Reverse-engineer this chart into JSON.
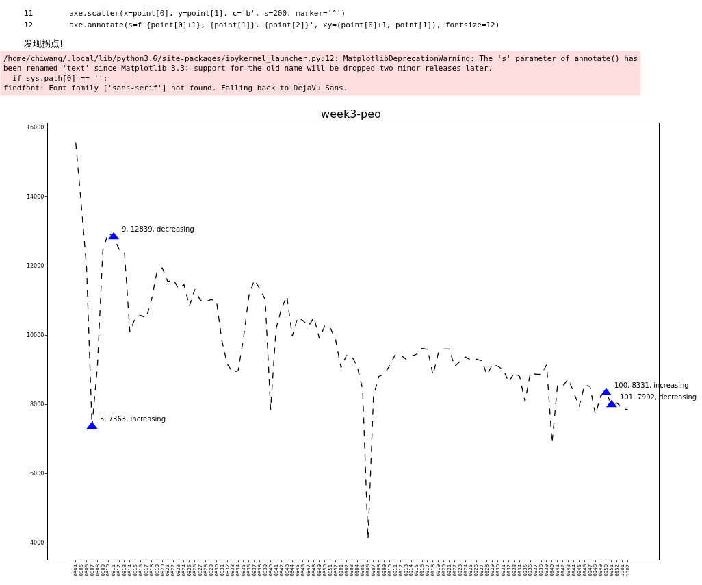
{
  "chart_data": {
    "type": "line",
    "title": "week3-peo",
    "categories": [
      "0804",
      "0805",
      "0806",
      "0807",
      "0808",
      "0809",
      "0810",
      "0811",
      "0812",
      "0813",
      "0814",
      "0815",
      "0816",
      "0817",
      "0818",
      "0819",
      "0820",
      "0821",
      "0822",
      "0823",
      "0824",
      "0825",
      "0826",
      "0827",
      "0828",
      "0829",
      "0830",
      "0831",
      "0832",
      "0833",
      "0834",
      "0835",
      "0836",
      "0837",
      "0838",
      "0839",
      "0840",
      "0841",
      "0842",
      "0843",
      "0844",
      "0845",
      "0846",
      "0847",
      "0848",
      "0849",
      "0850",
      "0851",
      "0852",
      "0901",
      "0902",
      "0903",
      "0904",
      "0905",
      "0906",
      "0907",
      "0908",
      "0909",
      "0910",
      "0911",
      "0912",
      "0913",
      "0914",
      "0915",
      "0916",
      "0917",
      "0918",
      "0919",
      "0920",
      "0921",
      "0922",
      "0923",
      "0924",
      "0925",
      "0926",
      "0927",
      "0928",
      "0929",
      "0930",
      "0931",
      "0932",
      "0933",
      "0934",
      "0935",
      "0936",
      "0937",
      "0938",
      "0939",
      "0940",
      "0941",
      "0942",
      "0943",
      "0944",
      "0945",
      "0946",
      "0947",
      "0948",
      "0949",
      "0950",
      "0951",
      "0952",
      "1001",
      "1002"
    ],
    "series": [
      {
        "color": "#000000",
        "line_style": "dashed",
        "marker": "none",
        "values": [
          15550,
          13800,
          11950,
          7363,
          9100,
          12450,
          12950,
          12839,
          12480,
          12390,
          10090,
          10510,
          10570,
          10490,
          11030,
          11830,
          11940,
          11540,
          11610,
          11340,
          11460,
          10840,
          11320,
          11010,
          10960,
          11030,
          10980,
          9840,
          9160,
          8930,
          8970,
          9930,
          11150,
          11590,
          11340,
          11030,
          7850,
          10180,
          10760,
          11130,
          9970,
          10510,
          10420,
          10260,
          10510,
          9910,
          10260,
          10220,
          9870,
          9060,
          9410,
          9390,
          9100,
          8440,
          4100,
          8230,
          8810,
          8870,
          9120,
          9430,
          9430,
          9310,
          9390,
          9450,
          9620,
          9590,
          8850,
          9490,
          9600,
          9600,
          9100,
          9240,
          9370,
          9280,
          9310,
          9260,
          8850,
          9160,
          9100,
          9000,
          8640,
          8910,
          8810,
          8080,
          8910,
          8870,
          8870,
          9140,
          6880,
          8540,
          8540,
          8730,
          8350,
          7940,
          8560,
          8520,
          7710,
          8250,
          8331,
          7992,
          8040,
          7880,
          7850
        ]
      },
      {
        "type": "scatter",
        "color": "#0000ff",
        "marker": "triangle",
        "values": [
          null,
          null,
          null,
          7363,
          null,
          null,
          null,
          12839,
          null,
          null,
          null,
          null,
          null,
          null,
          null,
          null,
          null,
          null,
          null,
          null,
          null,
          null,
          null,
          null,
          null,
          null,
          null,
          null,
          null,
          null,
          null,
          null,
          null,
          null,
          null,
          null,
          null,
          null,
          null,
          null,
          null,
          null,
          null,
          null,
          null,
          null,
          null,
          null,
          null,
          null,
          null,
          null,
          null,
          null,
          null,
          null,
          null,
          null,
          null,
          null,
          null,
          null,
          null,
          null,
          null,
          null,
          null,
          null,
          null,
          null,
          null,
          null,
          null,
          null,
          null,
          null,
          null,
          null,
          null,
          null,
          null,
          null,
          null,
          null,
          null,
          null,
          null,
          null,
          null,
          null,
          null,
          null,
          null,
          null,
          null,
          null,
          null,
          null,
          8331,
          7992,
          null,
          null,
          null
        ]
      }
    ],
    "ylim": [
      3517,
      16116
    ],
    "yticks": [
      4000,
      6000,
      8000,
      10000,
      12000,
      14000,
      16000
    ],
    "annotations": [
      "11        axe.scatter(x=point[0], y=point[1], c='b', s=200, marker='^')",
      "12        axe.annotate(s=f'{point[0]+1}, {point[1]}, {point[2]}', xy=(point[0]+1, point[1]), fontsize=12)",
      "发现拐点!",
      "/home/chiwang/.local/lib/python3.6/site-packages/ipykernel_launcher.py:12: MatplotlibDeprecationWarning: The 's' parameter of annotate() has\nbeen renamed 'text' since Matplotlib 3.3; support for the old name will be dropped two minor releases later.\n  if sys.path[0] == '':\nfindfont: Font family ['sans-serif'] not found. Falling back to DejaVu Sans.",
      {
        "text": "5, 7363, increasing",
        "x": "0808",
        "y": 7363
      },
      {
        "text": "9, 12839, decreasing",
        "x": "0812",
        "y": 12839
      },
      {
        "text": "100, 8331, increasing",
        "x": "0951",
        "y": 8331
      },
      {
        "text": "101, 7992, decreasing",
        "x": "0952",
        "y": 7992
      }
    ]
  }
}
